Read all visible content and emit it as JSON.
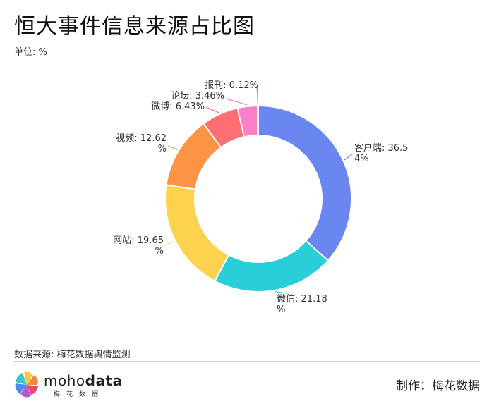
{
  "header": {
    "title": "恒大事件信息来源占比图",
    "unit": "单位: %"
  },
  "footer": {
    "source": "数据来源: 梅花数据舆情监测",
    "brand_main": "moho",
    "brand_bold": "data",
    "brand_sub": "梅花数据",
    "credit": "制作：梅花数据"
  },
  "chart_data": {
    "type": "pie",
    "variant": "donut",
    "unit": "%",
    "slices": [
      {
        "label": "客户端",
        "value": 36.54,
        "text": [
          "客户端: 36.5",
          "4%"
        ],
        "color": "#6a86f0"
      },
      {
        "label": "微信",
        "value": 21.18,
        "text": [
          "微信: 21.18",
          "%"
        ],
        "color": "#28cfd8"
      },
      {
        "label": "网站",
        "value": 19.65,
        "text": [
          "网站: 19.65",
          "%"
        ],
        "color": "#fdd24e"
      },
      {
        "label": "视频",
        "value": 12.62,
        "text": [
          "视频: 12.62",
          "%"
        ],
        "color": "#fd9445"
      },
      {
        "label": "微博",
        "value": 6.43,
        "text": [
          "微博: 6.43%"
        ],
        "color": "#fe6e72"
      },
      {
        "label": "论坛",
        "value": 3.46,
        "text": [
          "论坛: 3.46%"
        ],
        "color": "#ff7ec8"
      },
      {
        "label": "报刊",
        "value": 0.12,
        "text": [
          "报刊: 0.12%"
        ],
        "color": "#c979e0"
      }
    ]
  }
}
